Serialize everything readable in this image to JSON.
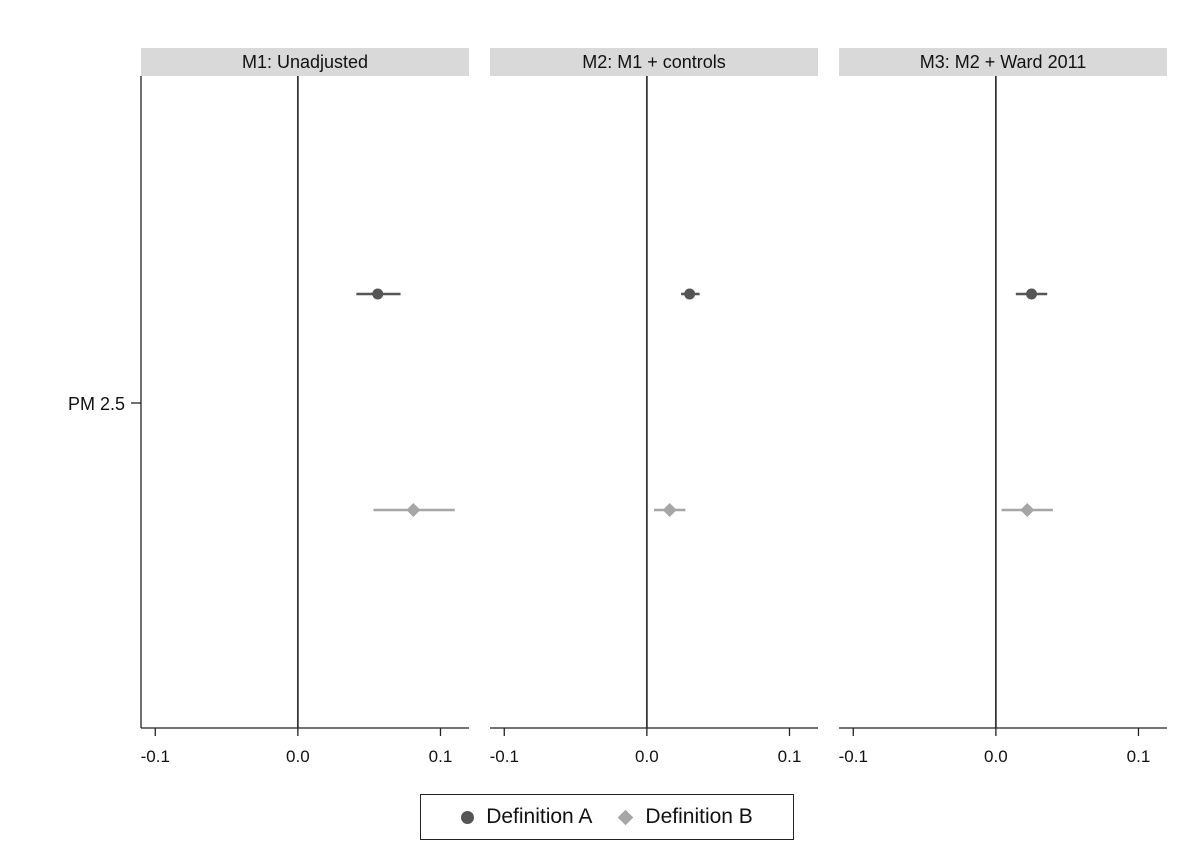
{
  "chart_data": {
    "type": "scatter",
    "subtype": "coefficient-plot",
    "y_categories": [
      "PM 2.5"
    ],
    "xlim": [
      -0.11,
      0.12
    ],
    "xticks": [
      -0.1,
      0.0,
      0.1
    ],
    "xtick_labels": [
      "-0.1",
      "0.0",
      "0.1"
    ],
    "reference_line": 0,
    "grid": false,
    "legend_position": "bottom",
    "panels": [
      {
        "title": "M1: Unadjusted",
        "points": [
          {
            "series": "Definition A",
            "estimate": 0.056,
            "ci": [
              0.041,
              0.072
            ]
          },
          {
            "series": "Definition B",
            "estimate": 0.081,
            "ci": [
              0.053,
              0.11
            ]
          }
        ]
      },
      {
        "title": "M2: M1 + controls",
        "points": [
          {
            "series": "Definition A",
            "estimate": 0.03,
            "ci": [
              0.024,
              0.037
            ]
          },
          {
            "series": "Definition B",
            "estimate": 0.016,
            "ci": [
              0.005,
              0.027
            ]
          }
        ]
      },
      {
        "title": "M3: M2 + Ward 2011",
        "points": [
          {
            "series": "Definition A",
            "estimate": 0.025,
            "ci": [
              0.014,
              0.036
            ]
          },
          {
            "series": "Definition B",
            "estimate": 0.022,
            "ci": [
              0.004,
              0.04
            ]
          }
        ]
      }
    ],
    "series": [
      {
        "name": "Definition A",
        "marker": "circle",
        "color": "#555555"
      },
      {
        "name": "Definition B",
        "marker": "diamond",
        "color": "#a6a6a6"
      }
    ],
    "strip_color": "#d9d9d9"
  }
}
